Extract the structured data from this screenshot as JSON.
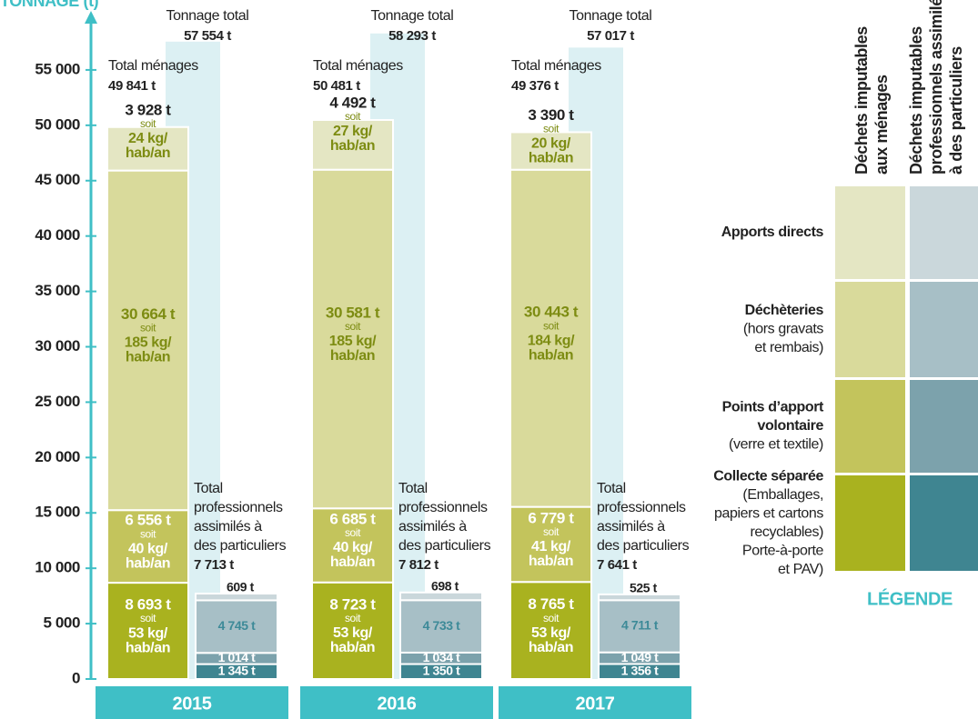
{
  "chart_data": {
    "type": "stacked_bar",
    "y_label": "TONNAGE (t)",
    "ylim": [
      0,
      60000
    ],
    "yticks": [
      0,
      {
        "value": 5000,
        "label": "5 000"
      },
      {
        "value": 10000,
        "label": "10 000"
      },
      {
        "value": 15000,
        "label": "15 000"
      },
      {
        "value": 20000,
        "label": "20 000"
      },
      {
        "value": 25000,
        "label": "25 000"
      },
      {
        "value": 30000,
        "label": "30 000"
      },
      {
        "value": 35000,
        "label": "35 000"
      },
      {
        "value": 40000,
        "label": "40 000"
      },
      {
        "value": 45000,
        "label": "45 000"
      },
      {
        "value": 50000,
        "label": "50 000"
      },
      {
        "value": 55000,
        "label": "55 000"
      }
    ],
    "categories": [
      "2015",
      "2016",
      "2017"
    ],
    "connector": "soit",
    "grand_total": {
      "label": "Tonnage total",
      "values": [
        57554,
        58293,
        57017
      ],
      "value_labels": [
        "57 554 t",
        "58 293 t",
        "57 017 t"
      ],
      "color": "#dcf0f3"
    },
    "groups": [
      {
        "name": [
          "Déchets imputables",
          "aux ménages"
        ],
        "total_label": [
          "Total ménages"
        ],
        "totals": [
          49841,
          50481,
          49376
        ],
        "total_value_labels": [
          "49 841 t",
          "50 481 t",
          "49 376 t"
        ],
        "series": [
          {
            "name": [
              "Collecte séparée"
            ],
            "notes": [
              "(Emballages,",
              "papiers et cartons",
              "recyclables)",
              "Porte-à-porte",
              "et PAV)"
            ],
            "color": "#a9b21f",
            "text_color": "#ffffff",
            "values": [
              8693,
              8723,
              8765
            ],
            "value_labels": [
              "8 693 t",
              "8 723 t",
              "8 765 t"
            ],
            "per_capita": [
              53,
              53,
              53
            ],
            "per_capita_labels": [
              [
                "53 kg/",
                "hab/an"
              ],
              [
                "53 kg/",
                "hab/an"
              ],
              [
                "53 kg/",
                "hab/an"
              ]
            ]
          },
          {
            "name": [
              "Points d’apport",
              "volontaire"
            ],
            "notes": [
              "(verre et textile)"
            ],
            "color": "#c3c45c",
            "text_color": "#ffffff",
            "values": [
              6556,
              6685,
              6779
            ],
            "value_labels": [
              "6 556 t",
              "6 685 t",
              "6 779 t"
            ],
            "per_capita": [
              40,
              40,
              41
            ],
            "per_capita_labels": [
              [
                "40 kg/",
                "hab/an"
              ],
              [
                "40 kg/",
                "hab/an"
              ],
              [
                "41 kg/",
                "hab/an"
              ]
            ]
          },
          {
            "name": [
              "Déchèteries"
            ],
            "notes": [
              "(hors gravats",
              "et rembais)"
            ],
            "color": "#d9da9b",
            "text_color": "#7d8c12",
            "values": [
              30664,
              30581,
              30443
            ],
            "value_labels": [
              "30 664 t",
              "30 581 t",
              "30 443 t"
            ],
            "per_capita": [
              185,
              185,
              184
            ],
            "per_capita_labels": [
              [
                "185 kg/",
                "hab/an"
              ],
              [
                "185 kg/",
                "hab/an"
              ],
              [
                "184 kg/",
                "hab/an"
              ]
            ]
          },
          {
            "name": [
              "Apports directs"
            ],
            "notes": [],
            "color": "#e4e6c3",
            "text_color": "#7d8c12",
            "values": [
              3928,
              4492,
              3390
            ],
            "value_labels": [
              "3 928 t",
              "4 492 t",
              "3 390 t"
            ],
            "per_capita": [
              24,
              27,
              20
            ],
            "per_capita_labels": [
              [
                "24 kg/",
                "hab/an"
              ],
              [
                "27 kg/",
                "hab/an"
              ],
              [
                "20 kg/",
                "hab/an"
              ]
            ]
          }
        ]
      },
      {
        "name": [
          "Déchets imputables",
          "professionnels assimilés",
          "à des particuliers"
        ],
        "total_label": [
          "Total",
          "professionnels",
          "assimilés à",
          "des particuliers"
        ],
        "totals": [
          7713,
          7812,
          7641
        ],
        "total_value_labels": [
          "7 713 t",
          "7 812 t",
          "7 641 t"
        ],
        "series": [
          {
            "color": "#3f8591",
            "text_color": "#ffffff",
            "values": [
              1345,
              1350,
              1356
            ],
            "value_labels": [
              "1 345 t",
              "1 350 t",
              "1 356 t"
            ]
          },
          {
            "color": "#7ca2ac",
            "text_color": "#ffffff",
            "values": [
              1014,
              1034,
              1049
            ],
            "value_labels": [
              "1 014 t",
              "1 034 t",
              "1 049 t"
            ]
          },
          {
            "color": "#a7bfc6",
            "text_color": "#3d8a98",
            "values": [
              4745,
              4733,
              4711
            ],
            "value_labels": [
              "4 745 t",
              "4 733 t",
              "4 711 t"
            ]
          },
          {
            "color": "#cad7db",
            "text_color": "#222222",
            "values": [
              609,
              698,
              525
            ],
            "value_labels": [
              "609 t",
              "698 t",
              "525 t"
            ]
          }
        ]
      }
    ],
    "legend": {
      "title": "LÉGENDE"
    }
  }
}
